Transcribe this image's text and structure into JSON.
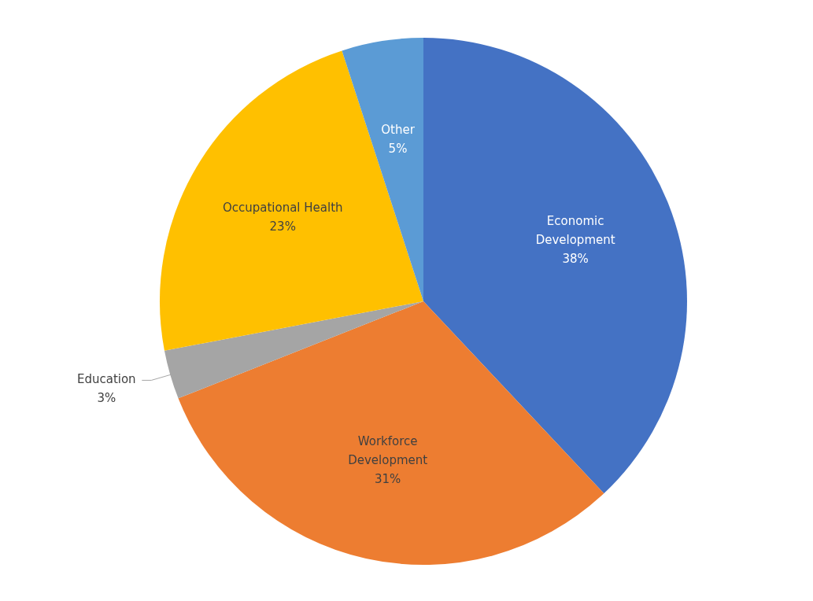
{
  "chart_data": {
    "type": "pie",
    "categories": [
      "Economic Development",
      "Workforce Development",
      "Education",
      "Occupational Health",
      "Other"
    ],
    "values": [
      38,
      31,
      3,
      23,
      5
    ],
    "colors": [
      "#4472c4",
      "#ed7d31",
      "#a5a5a5",
      "#ffc000",
      "#5b9bd5"
    ],
    "value_labels": [
      "38%",
      "31%",
      "3%",
      "23%",
      "5%"
    ],
    "legend": false
  }
}
